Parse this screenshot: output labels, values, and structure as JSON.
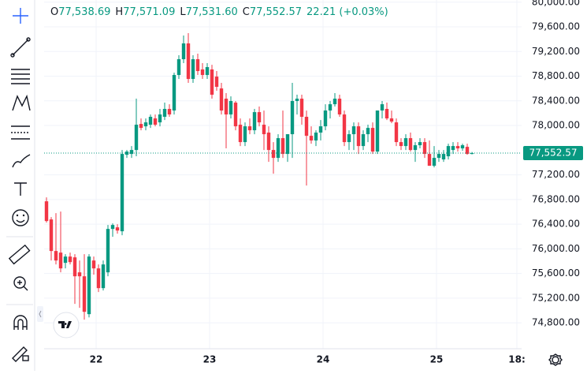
{
  "chart_data": {
    "type": "candlestick",
    "header": [
      {
        "key": "O",
        "value": "77,538.69"
      },
      {
        "key": "H",
        "value": "77,571.09"
      },
      {
        "key": "L",
        "value": "77,531.60"
      },
      {
        "key": "C",
        "value": "77,552.57"
      }
    ],
    "change": "22.21 (+0.03%)",
    "up_color": "#089981",
    "down_color": "#f23645",
    "grid": true,
    "xlim": [
      -0.5,
      100.5
    ],
    "ylim": [
      74380,
      80035
    ],
    "xticks": [
      {
        "value": 10.5,
        "label": "22"
      },
      {
        "value": 34.5,
        "label": "23"
      },
      {
        "value": 58.5,
        "label": "24"
      },
      {
        "value": 82.5,
        "label": "25"
      },
      {
        "value": 99.5,
        "label": "18:"
      }
    ],
    "yticks": [
      {
        "value": 80000,
        "label": "80,000.00"
      },
      {
        "value": 79600,
        "label": "79,600.00"
      },
      {
        "value": 79200,
        "label": "79,200.00"
      },
      {
        "value": 78800,
        "label": "78,800.00"
      },
      {
        "value": 78400,
        "label": "78,400.00"
      },
      {
        "value": 78000,
        "label": "78,000.00"
      },
      {
        "value": 77200,
        "label": "77,200.00"
      },
      {
        "value": 76800,
        "label": "76,800.00"
      },
      {
        "value": 76400,
        "label": "76,400.00"
      },
      {
        "value": 76000,
        "label": "76,000.00"
      },
      {
        "value": 75600,
        "label": "75,600.00"
      },
      {
        "value": 75200,
        "label": "75,200.00"
      },
      {
        "value": 74800,
        "label": "74,800.00"
      }
    ],
    "last_price": {
      "value": 77552.57,
      "label": "77,552.57"
    },
    "x": [
      0,
      1,
      2,
      3,
      4,
      5,
      6,
      7,
      8,
      9,
      10,
      11,
      12,
      13,
      14,
      15,
      16,
      17,
      18,
      19,
      20,
      21,
      22,
      23,
      24,
      25,
      26,
      27,
      28,
      29,
      30,
      31,
      32,
      33,
      34,
      35,
      36,
      37,
      38,
      39,
      40,
      41,
      42,
      43,
      44,
      45,
      46,
      47,
      48,
      49,
      50,
      51,
      52,
      53,
      54,
      55,
      56,
      57,
      58,
      59,
      60,
      61,
      62,
      63,
      64,
      65,
      66,
      67,
      68,
      69,
      70,
      71,
      72,
      73,
      74,
      75,
      76,
      77,
      78,
      79,
      80,
      81,
      82,
      83,
      84,
      85,
      86,
      87,
      88,
      89,
      90
    ],
    "open": [
      76771,
      76477,
      75965,
      75939,
      75773,
      75875,
      75862,
      75619,
      75555,
      74941,
      75811,
      75683,
      75363,
      75619,
      76323,
      76349,
      76285,
      77526,
      77539,
      77603,
      78025,
      77987,
      78013,
      78115,
      78051,
      78141,
      78269,
      78243,
      78819,
      79075,
      79331,
      78755,
      79075,
      78909,
      78819,
      78909,
      78793,
      78601,
      78435,
      78179,
      78371,
      78013,
      77731,
      77987,
      77923,
      78217,
      78013,
      77885,
      77603,
      77475,
      77795,
      77539,
      77859,
      78397,
      78435,
      78141,
      77833,
      77757,
      77885,
      77987,
      78243,
      78345,
      78435,
      78179,
      77731,
      77859,
      77987,
      77667,
      77859,
      77961,
      77577,
      78243,
      78269,
      78115,
      78051,
      77731,
      77667,
      77795,
      77603,
      77680,
      77731,
      77539,
      77347,
      77475,
      77450,
      77501,
      77603,
      77667,
      77629,
      77654,
      77538.69
    ],
    "high": [
      76835,
      76515,
      76579,
      76605,
      75913,
      75939,
      75913,
      75811,
      75913,
      75913,
      75875,
      75747,
      75811,
      76387,
      76413,
      76400,
      77603,
      77603,
      77667,
      78435,
      78115,
      78115,
      78179,
      78179,
      78269,
      78371,
      78345,
      78857,
      79139,
      79459,
      79497,
      79139,
      79165,
      79011,
      79011,
      78985,
      78883,
      78691,
      78525,
      78473,
      78397,
      78115,
      78051,
      78115,
      78269,
      78307,
      78243,
      77987,
      77731,
      77859,
      78243,
      77859,
      78691,
      78499,
      78499,
      78243,
      77987,
      77923,
      78089,
      78345,
      78397,
      78525,
      78499,
      78243,
      77923,
      78051,
      78051,
      77923,
      78013,
      78051,
      78243,
      78397,
      78371,
      78243,
      78115,
      77795,
      77859,
      77885,
      77731,
      77795,
      77795,
      77757,
      77667,
      77603,
      77603,
      77705,
      77731,
      77731,
      77705,
      77705,
      77571.09
    ],
    "low": [
      76425,
      75811,
      75747,
      75619,
      75683,
      75747,
      75107,
      75043,
      74851,
      74889,
      75581,
      75299,
      75325,
      75555,
      76195,
      76246,
      76221,
      77475,
      77475,
      77501,
      77923,
      77923,
      77961,
      77987,
      77987,
      78089,
      78141,
      78179,
      78755,
      79011,
      78691,
      78691,
      78819,
      78755,
      78755,
      78435,
      78563,
      78179,
      77629,
      78115,
      77923,
      77667,
      77667,
      77859,
      77859,
      77987,
      77603,
      77411,
      77219,
      77411,
      77475,
      77411,
      77475,
      78179,
      78013,
      77027,
      77705,
      77667,
      77757,
      77923,
      78115,
      78307,
      78141,
      77667,
      77603,
      77603,
      77539,
      77603,
      77731,
      77539,
      77539,
      78115,
      78089,
      78038,
      77667,
      77603,
      77603,
      77577,
      77411,
      77629,
      77475,
      77347,
      77321,
      77411,
      77411,
      77449,
      77539,
      77577,
      77590,
      77526,
      77531.6
    ],
    "close": [
      76451,
      75965,
      75811,
      75683,
      75875,
      75785,
      75555,
      75555,
      74979,
      75875,
      75683,
      75363,
      75747,
      76323,
      76387,
      76297,
      77539,
      77577,
      77603,
      78013,
      77961,
      78051,
      78141,
      78013,
      78179,
      78269,
      78179,
      78819,
      79075,
      79331,
      78755,
      79075,
      78883,
      78819,
      78947,
      78499,
      78627,
      78243,
      78179,
      78397,
      77987,
      77731,
      77987,
      77923,
      78217,
      78051,
      77859,
      77603,
      77475,
      77795,
      77539,
      77859,
      78397,
      78435,
      78141,
      77833,
      77757,
      77885,
      77987,
      78243,
      78345,
      78435,
      78179,
      77731,
      77859,
      77987,
      77667,
      77859,
      77961,
      77577,
      78243,
      78345,
      78115,
      78064,
      77731,
      77667,
      77795,
      77603,
      77680,
      77731,
      77539,
      77347,
      77475,
      77539,
      77539,
      77667,
      77667,
      77629,
      77680,
      77539,
      77552.57
    ]
  }
}
